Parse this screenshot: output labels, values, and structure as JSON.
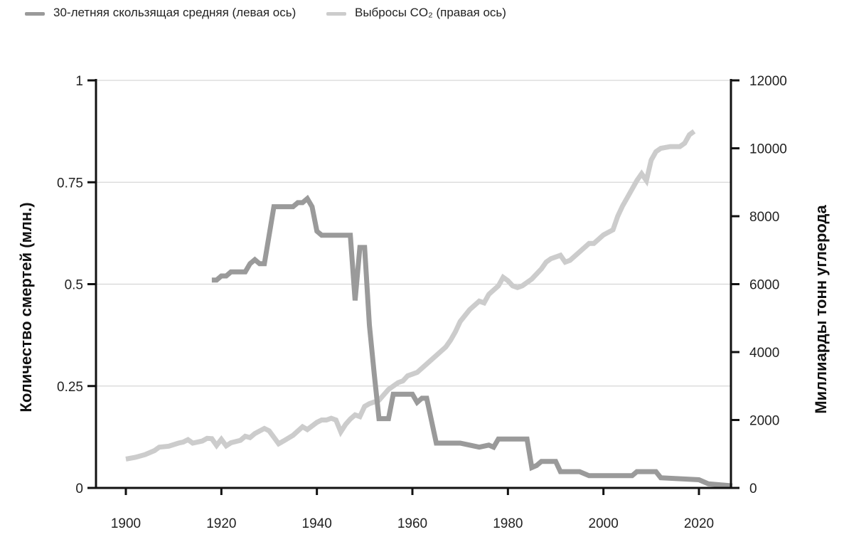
{
  "chart_data": {
    "type": "line",
    "title": "",
    "xlabel": "",
    "ylabel": "Количество смертей (млн.)",
    "ylabel_right": "Миллиарды тонн углерода",
    "xlim": [
      1900,
      2027
    ],
    "ylim": [
      0,
      1
    ],
    "ylim_right": [
      0,
      12000
    ],
    "x_ticks": [
      "1900",
      "1920",
      "1940",
      "1960",
      "1980",
      "2000",
      "2020"
    ],
    "y_ticks_left": [
      "0",
      "0.25",
      "0.5",
      "0.75",
      "1"
    ],
    "y_ticks_right": [
      "0",
      "2000",
      "4000",
      "6000",
      "8000",
      "10000",
      "12000"
    ],
    "grid": "horizontal",
    "legend_position": "top-left",
    "series": [
      {
        "name": "30-летняя скользящая средняя (левая ось)",
        "axis": "left",
        "color": "#9a9a9a",
        "points": [
          [
            1918,
            0.51
          ],
          [
            1919,
            0.51
          ],
          [
            1920,
            0.52
          ],
          [
            1921,
            0.52
          ],
          [
            1922,
            0.53
          ],
          [
            1924,
            0.53
          ],
          [
            1925,
            0.53
          ],
          [
            1926,
            0.55
          ],
          [
            1927,
            0.56
          ],
          [
            1928,
            0.55
          ],
          [
            1929,
            0.55
          ],
          [
            1931,
            0.69
          ],
          [
            1935,
            0.69
          ],
          [
            1936,
            0.7
          ],
          [
            1937,
            0.7
          ],
          [
            1938,
            0.71
          ],
          [
            1939,
            0.69
          ],
          [
            1940,
            0.63
          ],
          [
            1941,
            0.62
          ],
          [
            1946,
            0.62
          ],
          [
            1947,
            0.62
          ],
          [
            1948,
            0.46
          ],
          [
            1949,
            0.59
          ],
          [
            1950,
            0.59
          ],
          [
            1951,
            0.4
          ],
          [
            1952,
            0.28
          ],
          [
            1953,
            0.17
          ],
          [
            1955,
            0.17
          ],
          [
            1956,
            0.23
          ],
          [
            1959,
            0.23
          ],
          [
            1960,
            0.23
          ],
          [
            1961,
            0.21
          ],
          [
            1962,
            0.22
          ],
          [
            1963,
            0.22
          ],
          [
            1965,
            0.11
          ],
          [
            1968,
            0.11
          ],
          [
            1970,
            0.11
          ],
          [
            1972,
            0.105
          ],
          [
            1974,
            0.1
          ],
          [
            1976,
            0.105
          ],
          [
            1977,
            0.1
          ],
          [
            1978,
            0.12
          ],
          [
            1984,
            0.12
          ],
          [
            1985,
            0.05
          ],
          [
            1986,
            0.055
          ],
          [
            1987,
            0.065
          ],
          [
            1990,
            0.065
          ],
          [
            1991,
            0.04
          ],
          [
            1995,
            0.04
          ],
          [
            1997,
            0.03
          ],
          [
            2003,
            0.03
          ],
          [
            2006,
            0.03
          ],
          [
            2007,
            0.04
          ],
          [
            2011,
            0.04
          ],
          [
            2012,
            0.025
          ],
          [
            2020,
            0.02
          ],
          [
            2022,
            0.01
          ],
          [
            2027,
            0.005
          ]
        ]
      },
      {
        "name": "Выбросы CO₂ (правая ось)",
        "axis": "right",
        "color": "#cccccc",
        "points": [
          [
            1900,
            850
          ],
          [
            1902,
            900
          ],
          [
            1904,
            980
          ],
          [
            1906,
            1100
          ],
          [
            1907,
            1200
          ],
          [
            1909,
            1230
          ],
          [
            1911,
            1320
          ],
          [
            1912,
            1350
          ],
          [
            1913,
            1420
          ],
          [
            1914,
            1320
          ],
          [
            1916,
            1380
          ],
          [
            1917,
            1460
          ],
          [
            1918,
            1450
          ],
          [
            1919,
            1250
          ],
          [
            1920,
            1430
          ],
          [
            1921,
            1240
          ],
          [
            1922,
            1330
          ],
          [
            1924,
            1400
          ],
          [
            1925,
            1520
          ],
          [
            1926,
            1480
          ],
          [
            1927,
            1600
          ],
          [
            1929,
            1750
          ],
          [
            1930,
            1680
          ],
          [
            1932,
            1300
          ],
          [
            1933,
            1380
          ],
          [
            1935,
            1550
          ],
          [
            1937,
            1800
          ],
          [
            1938,
            1720
          ],
          [
            1940,
            1930
          ],
          [
            1941,
            2000
          ],
          [
            1942,
            2000
          ],
          [
            1943,
            2050
          ],
          [
            1944,
            2000
          ],
          [
            1945,
            1650
          ],
          [
            1946,
            1870
          ],
          [
            1947,
            2030
          ],
          [
            1948,
            2150
          ],
          [
            1949,
            2100
          ],
          [
            1950,
            2400
          ],
          [
            1951,
            2480
          ],
          [
            1953,
            2580
          ],
          [
            1955,
            2900
          ],
          [
            1957,
            3100
          ],
          [
            1958,
            3150
          ],
          [
            1959,
            3300
          ],
          [
            1961,
            3400
          ],
          [
            1963,
            3650
          ],
          [
            1965,
            3900
          ],
          [
            1967,
            4150
          ],
          [
            1968,
            4350
          ],
          [
            1969,
            4600
          ],
          [
            1970,
            4900
          ],
          [
            1972,
            5250
          ],
          [
            1974,
            5500
          ],
          [
            1975,
            5450
          ],
          [
            1976,
            5700
          ],
          [
            1978,
            5950
          ],
          [
            1979,
            6200
          ],
          [
            1980,
            6100
          ],
          [
            1981,
            5950
          ],
          [
            1982,
            5900
          ],
          [
            1983,
            5950
          ],
          [
            1985,
            6150
          ],
          [
            1987,
            6450
          ],
          [
            1988,
            6650
          ],
          [
            1989,
            6750
          ],
          [
            1991,
            6850
          ],
          [
            1992,
            6650
          ],
          [
            1993,
            6700
          ],
          [
            1995,
            6950
          ],
          [
            1997,
            7200
          ],
          [
            1998,
            7200
          ],
          [
            2000,
            7450
          ],
          [
            2002,
            7600
          ],
          [
            2003,
            8000
          ],
          [
            2004,
            8300
          ],
          [
            2005,
            8550
          ],
          [
            2006,
            8800
          ],
          [
            2007,
            9050
          ],
          [
            2008,
            9250
          ],
          [
            2009,
            9050
          ],
          [
            2010,
            9650
          ],
          [
            2011,
            9900
          ],
          [
            2012,
            10000
          ],
          [
            2014,
            10050
          ],
          [
            2016,
            10050
          ],
          [
            2017,
            10150
          ],
          [
            2018,
            10400
          ],
          [
            2019,
            10500
          ]
        ]
      }
    ]
  }
}
